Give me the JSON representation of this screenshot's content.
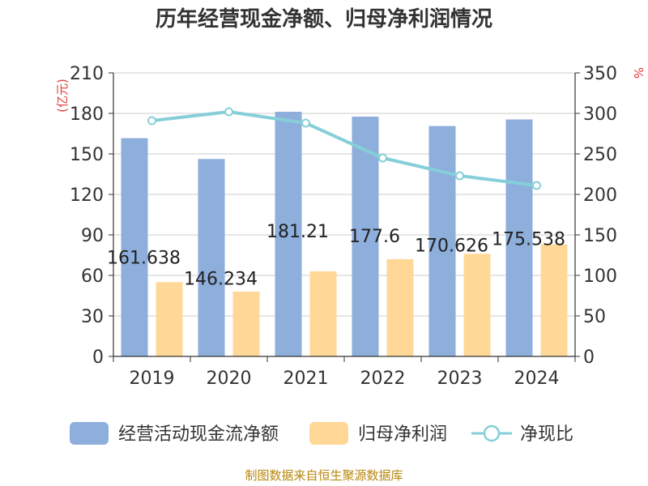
{
  "chart_data": {
    "type": "bar",
    "title": "历年经营现金净额、归母净利润情况",
    "categories": [
      "2019",
      "2020",
      "2021",
      "2022",
      "2023",
      "2024"
    ],
    "series": [
      {
        "name": "经营活动现金流净额",
        "kind": "bar",
        "axis": "left",
        "values": [
          161.638,
          146.234,
          181.21,
          177.6,
          170.626,
          175.538
        ],
        "labels": [
          "161.638",
          "146.234",
          "181.21",
          "177.6",
          "170.626",
          "175.538"
        ]
      },
      {
        "name": "归母净利润",
        "kind": "bar",
        "axis": "left",
        "values": [
          55,
          48,
          63,
          72,
          76,
          83
        ]
      },
      {
        "name": "净现比",
        "kind": "line",
        "axis": "right",
        "values": [
          291,
          302,
          288,
          245,
          223,
          211
        ]
      }
    ],
    "y_left": {
      "unit": "(亿元)",
      "ylim": [
        0,
        210
      ],
      "ticks": [
        "0",
        "30",
        "60",
        "90",
        "120",
        "150",
        "180",
        "210"
      ]
    },
    "y_right": {
      "unit": "%",
      "ylim": [
        0,
        350
      ],
      "ticks": [
        "0",
        "50",
        "100",
        "150",
        "200",
        "250",
        "300",
        "350"
      ]
    },
    "grid": true,
    "legend_position": "bottom",
    "colors": {
      "bar1": "#8eaedb",
      "bar2": "#ffd898",
      "line": "#86cfd8"
    },
    "source": "制图数据来自恒生聚源数据库"
  }
}
